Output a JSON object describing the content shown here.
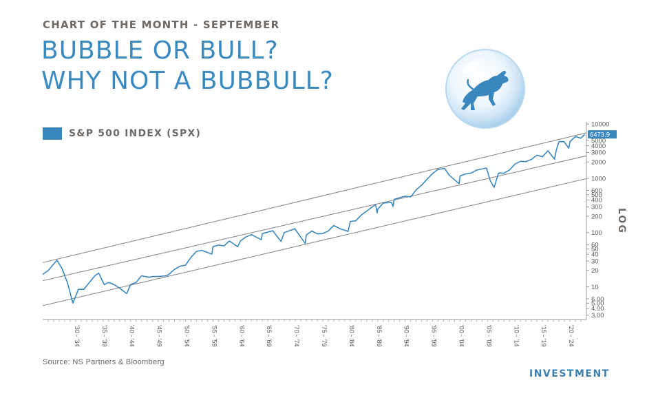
{
  "header": {
    "kicker": "CHART OF THE MONTH - SEPTEMBER",
    "title_line1": "BUBBLE OR BULL?",
    "title_line2": "WHY NOT A BUBBULL?"
  },
  "logo": {
    "icon": "bull-in-bubble-icon",
    "color": "#3a87bf"
  },
  "footer": {
    "source": "Source: NS Partners & Bloomberg",
    "brand": "INVESTMENT"
  },
  "colors": {
    "series": "#3a87bf",
    "channel": "#8a8a8a",
    "axis": "#666666",
    "title": "#3a8ac0"
  },
  "chart_data": {
    "type": "line",
    "title": "",
    "xlabel": "",
    "ylabel": "LOG",
    "y_scale": "log",
    "ylim": [
      2.5,
      11000
    ],
    "xlim": [
      1927,
      2026
    ],
    "grid": false,
    "legend_position": "top-left",
    "y_ticks": [
      3,
      4,
      5,
      6,
      10,
      20,
      30,
      40,
      50,
      60,
      100,
      200,
      300,
      400,
      500,
      600,
      1000,
      2000,
      3000,
      4000,
      5000,
      10000
    ],
    "y_tick_labels": [
      "3.00",
      "4.00",
      "5.00",
      "6.00",
      "10",
      "20",
      "30",
      "40",
      "50",
      "60",
      "100",
      "200",
      "300",
      "400",
      "500",
      "600",
      "1000",
      "2000",
      "3000",
      "4000",
      "5000",
      "10000"
    ],
    "x_ticks": [
      1930,
      1935,
      1940,
      1945,
      1950,
      1955,
      1960,
      1965,
      1970,
      1975,
      1980,
      1985,
      1990,
      1995,
      2000,
      2005,
      2010,
      2015,
      2020
    ],
    "x_tick_labels": [
      "'30 - '34",
      "'35 - '39",
      "'40 - '44",
      "'45 - '49",
      "'50 - '54",
      "'55 - '59",
      "'60 - '64",
      "'65 - '69",
      "'70 - '74",
      "'75 - '79",
      "'80 - '84",
      "'85 - '89",
      "'90 - '94",
      "'95 - '99",
      "'00 - '04",
      "'05 - '09",
      "'10 - '14",
      "'15 - '19",
      "'20 - '24"
    ],
    "last_value_label": "6473.9",
    "series": [
      {
        "name": "S&P 500 INDEX (SPX)",
        "x": [
          1927,
          1928,
          1929.6,
          1930.5,
          1931.5,
          1932.5,
          1933.5,
          1934.5,
          1935.5,
          1936.5,
          1937.2,
          1938.2,
          1939,
          1940,
          1941,
          1942.3,
          1943,
          1944,
          1945,
          1946.4,
          1947,
          1948,
          1949.5,
          1950,
          1951,
          1952,
          1953,
          1954,
          1955,
          1956,
          1957.8,
          1958,
          1959,
          1960,
          1961,
          1962.5,
          1963,
          1964,
          1965,
          1966.8,
          1967,
          1968.9,
          1970.4,
          1971,
          1972.9,
          1974.8,
          1975,
          1976,
          1977,
          1978,
          1979,
          1980,
          1981,
          1982.6,
          1983,
          1984,
          1985,
          1986,
          1987.6,
          1987.9,
          1988,
          1989,
          1990.5,
          1990.8,
          1991,
          1992,
          1993,
          1994,
          1995,
          1996,
          1997,
          1998,
          1999,
          2000.2,
          2001,
          2002.8,
          2003,
          2004,
          2005,
          2006,
          2007.8,
          2008.5,
          2009.2,
          2010,
          2011,
          2012,
          2013,
          2014,
          2015,
          2016,
          2017,
          2018,
          2019,
          2020.2,
          2020.5,
          2021,
          2021.9,
          2022.8,
          2023,
          2024,
          2025,
          2025.7
        ],
        "values": [
          17,
          20,
          31,
          22,
          12,
          5,
          9,
          9,
          12,
          16,
          18,
          11,
          12,
          11,
          9.5,
          7.5,
          11,
          12,
          16,
          15,
          15.5,
          15.5,
          16,
          17,
          21,
          24,
          25,
          35,
          45,
          47,
          40,
          55,
          59,
          57,
          70,
          55,
          70,
          83,
          92,
          74,
          96,
          108,
          69,
          100,
          118,
          63,
          90,
          107,
          95,
          96,
          107,
          135,
          120,
          105,
          160,
          165,
          210,
          250,
          330,
          230,
          270,
          350,
          360,
          305,
          410,
          440,
          470,
          455,
          615,
          750,
          970,
          1230,
          1470,
          1520,
          1150,
          800,
          1110,
          1210,
          1250,
          1420,
          1550,
          900,
          680,
          1250,
          1250,
          1430,
          1840,
          2060,
          2040,
          2240,
          2670,
          2500,
          3230,
          2250,
          3250,
          4760,
          4770,
          3600,
          4770,
          5880,
          5500,
          6473.9
        ]
      }
    ],
    "channels": [
      {
        "name": "upper",
        "x": [
          1927,
          2026
        ],
        "values": [
          28,
          6900
        ]
      },
      {
        "name": "middle",
        "x": [
          1927,
          2026
        ],
        "values": [
          13,
          2600
        ]
      },
      {
        "name": "lower",
        "x": [
          1927,
          2026
        ],
        "values": [
          4.5,
          990
        ]
      }
    ]
  }
}
